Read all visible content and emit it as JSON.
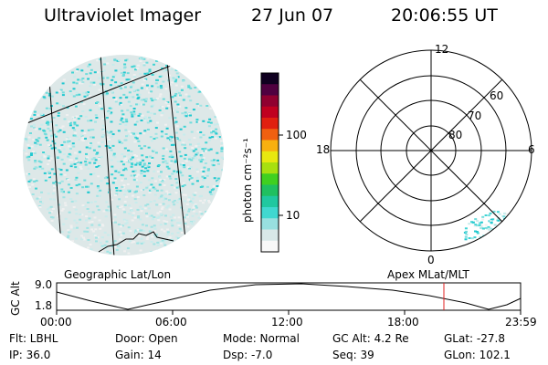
{
  "header": {
    "title": "Ultraviolet Imager",
    "date": "27 Jun 07",
    "time": "20:06:55 UT"
  },
  "colorbar": {
    "unit_label": "photon cm⁻²s⁻¹",
    "ticks": [
      "100",
      "10"
    ],
    "colors": [
      "#f8f8f8",
      "#d8e8e8",
      "#98e0e0",
      "#40d8d0",
      "#20c8a0",
      "#20c060",
      "#40d020",
      "#a8e010",
      "#e8e810",
      "#f8b010",
      "#f06010",
      "#e02010",
      "#c00020",
      "#900030",
      "#500040",
      "#100020"
    ]
  },
  "polar_plot": {
    "mlt_labels": {
      "top": "12",
      "left": "18",
      "right": "6",
      "bottom": "0"
    },
    "lat_labels": [
      "60",
      "70",
      "80"
    ]
  },
  "map_labels": {
    "left": "Geographic Lat/Lon",
    "right": "Apex MLat/MLT"
  },
  "altitude_panel": {
    "axis_label": "GC Alt",
    "ytick_top": "9.0",
    "ytick_bottom": "1.8",
    "time_ticks": [
      "00:00",
      "06:00",
      "12:00",
      "18:00",
      "23:59"
    ],
    "marker_color": "#e02020"
  },
  "status": {
    "flt": "Flt: LBHL",
    "ip": "IP: 36.0",
    "door": "Door: Open",
    "gain": "Gain: 14",
    "mode": "Mode: Normal",
    "dsp": "Dsp:  -7.0",
    "gc_alt": "GC Alt: 4.2 Re",
    "seq": "Seq: 39",
    "glat": "GLat: -27.8",
    "glon": "GLon: 102.1"
  }
}
